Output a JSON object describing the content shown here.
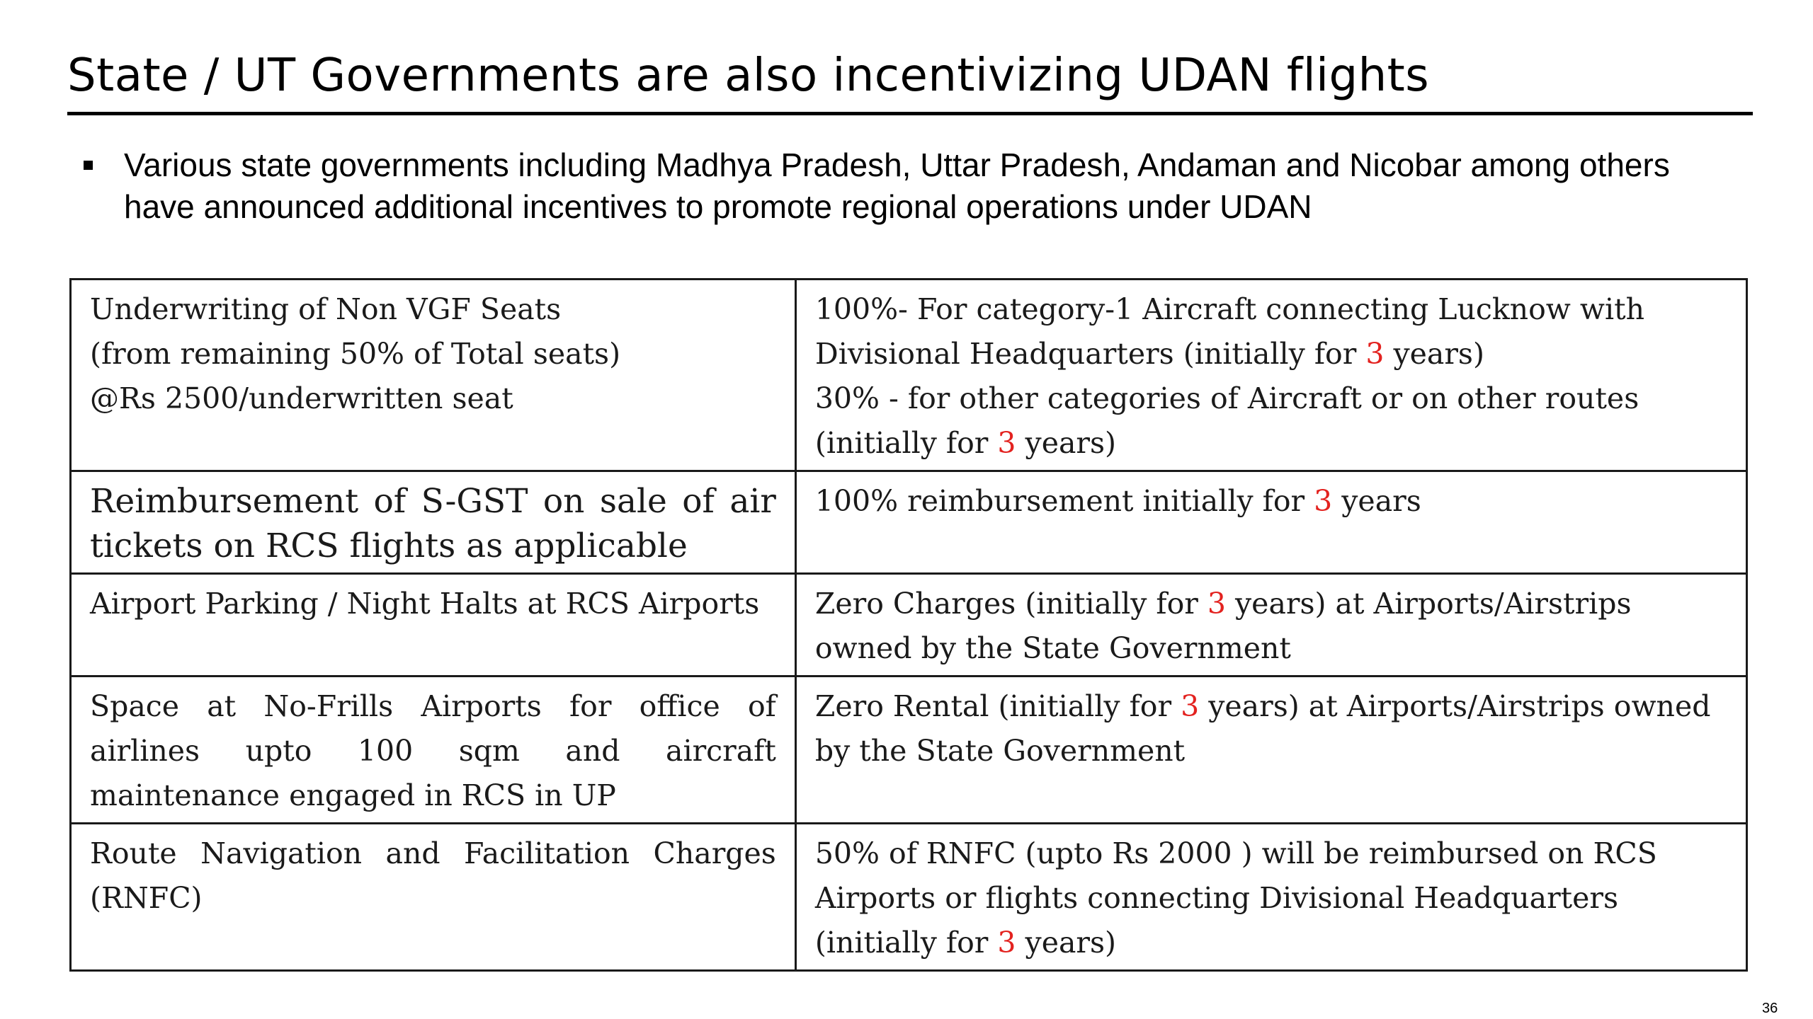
{
  "slide": {
    "title": "State / UT Governments are also incentivizing UDAN flights",
    "page_number": "36"
  },
  "bullet": {
    "text": "Various state governments including Madhya Pradesh, Uttar Pradesh, Andaman and Nicobar among others have announced additional incentives to promote regional operations under UDAN"
  },
  "table": {
    "rows": [
      {
        "left": [
          "Underwriting of Non VGF Seats",
          "(from remaining 50% of Total seats)",
          "@Rs 2500/underwritten seat"
        ],
        "right": {
          "line1": "100%- For category-1 Aircraft connecting Lucknow with",
          "line2_pre": "Divisional Headquarters (initially for ",
          "line2_num": "3",
          "line2_post": " years)",
          "line3": "30% - for other categories of Aircraft or on other routes",
          "line4_pre": "(initially for ",
          "line4_num": "3",
          "line4_post": " years)"
        }
      },
      {
        "left": "Reimbursement of S-GST on sale of air tickets on RCS flights as applicable",
        "right": {
          "pre": "100% reimbursement initially for ",
          "num": "3",
          "post": " years"
        }
      },
      {
        "left": "Airport Parking / Night Halts at RCS Airports",
        "right": {
          "pre": "Zero Charges (initially for ",
          "num": "3",
          "post": " years) at Airports/Airstrips owned by the State Government"
        }
      },
      {
        "left": "Space at No-Frills Airports for office of airlines upto 100 sqm and aircraft maintenance engaged in RCS in UP",
        "right": {
          "pre": "Zero Rental (initially for ",
          "num": "3",
          "post": " years) at Airports/Airstrips owned by the State Government"
        }
      },
      {
        "left": "Route Navigation and Facilitation Charges (RNFC)",
        "right": {
          "pre": "50% of RNFC (upto Rs 2000 ) will be reimbursed on RCS Airports or flights connecting Divisional Headquarters (initially for ",
          "num": "3",
          "post": " years)"
        }
      }
    ]
  },
  "colors": {
    "highlight": "#e3221f",
    "text": "#000000",
    "table_text": "#1a1a1a"
  }
}
